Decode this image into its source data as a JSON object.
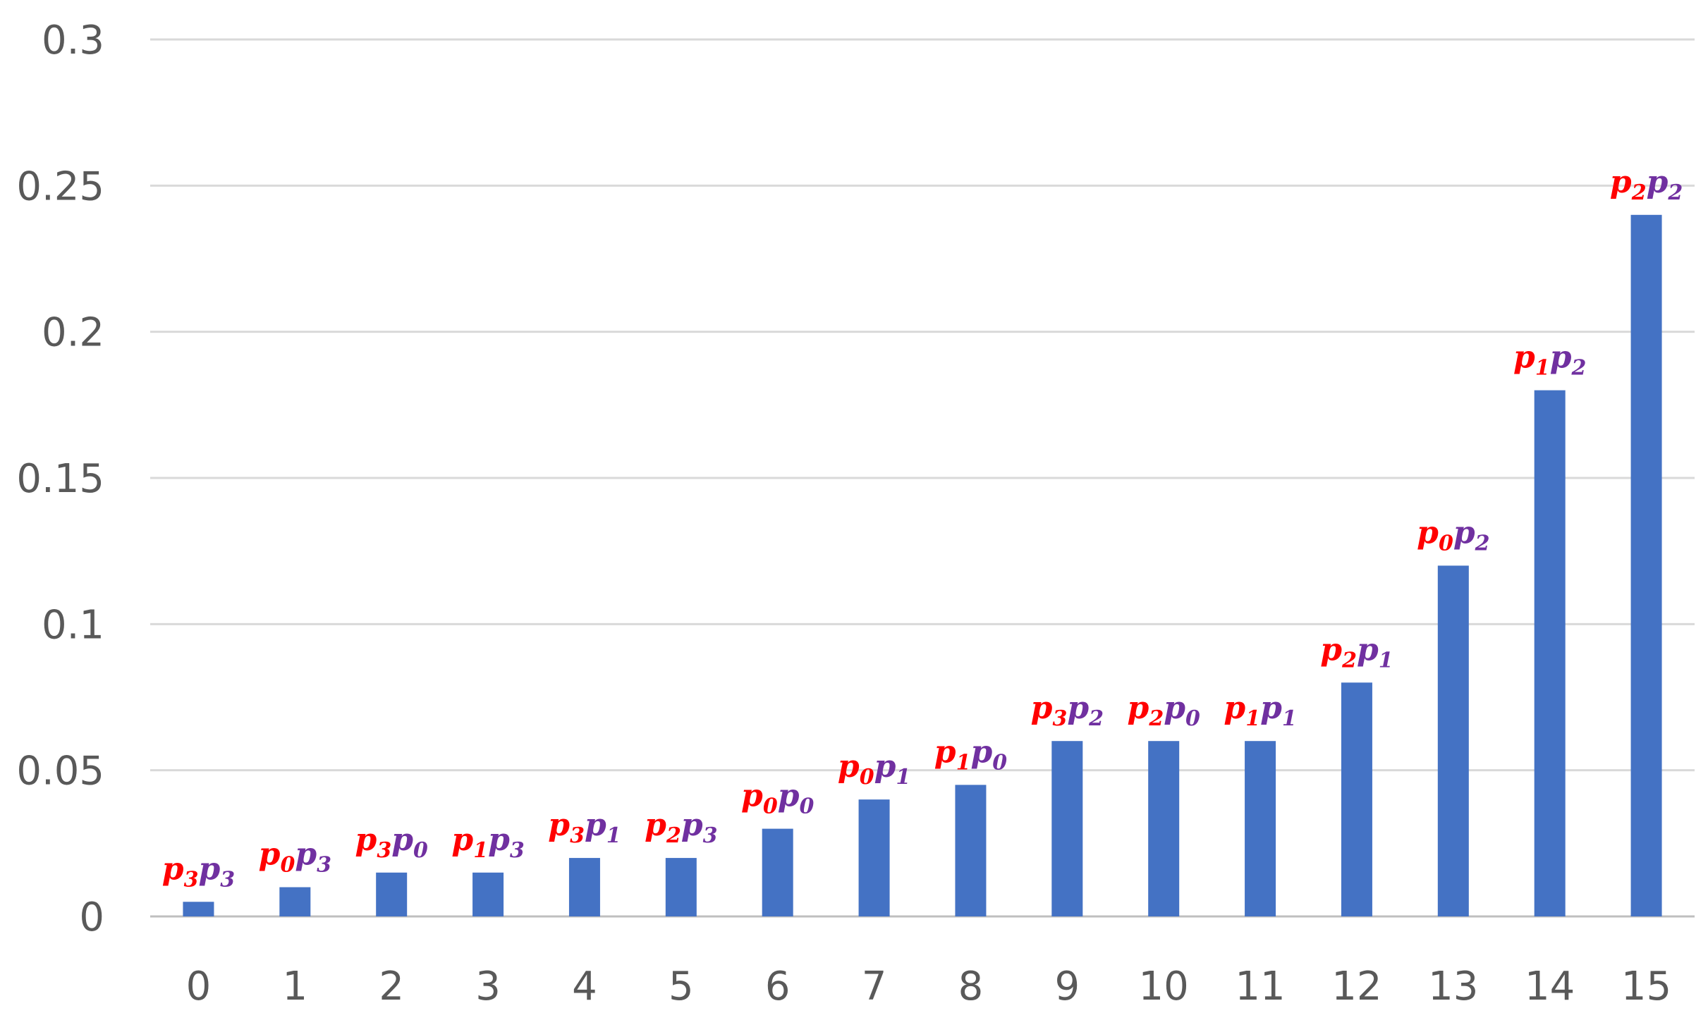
{
  "chart_data": {
    "type": "bar",
    "title": "",
    "xlabel": "",
    "ylabel": "",
    "ylim": [
      0,
      0.3
    ],
    "yticks": [
      "0",
      "0.05",
      "0.1",
      "0.15",
      "0.2",
      "0.25",
      "0.3"
    ],
    "grid": true,
    "categories": [
      "0",
      "1",
      "2",
      "3",
      "4",
      "5",
      "6",
      "7",
      "8",
      "9",
      "10",
      "11",
      "12",
      "13",
      "14",
      "15"
    ],
    "values": [
      0.005,
      0.01,
      0.015,
      0.015,
      0.02,
      0.02,
      0.03,
      0.04,
      0.045,
      0.06,
      0.06,
      0.06,
      0.08,
      0.12,
      0.18,
      0.24
    ],
    "annotations": [
      {
        "first": "3",
        "second": "3"
      },
      {
        "first": "0",
        "second": "3"
      },
      {
        "first": "3",
        "second": "0"
      },
      {
        "first": "1",
        "second": "3"
      },
      {
        "first": "3",
        "second": "1"
      },
      {
        "first": "2",
        "second": "3"
      },
      {
        "first": "0",
        "second": "0"
      },
      {
        "first": "0",
        "second": "1"
      },
      {
        "first": "1",
        "second": "0"
      },
      {
        "first": "3",
        "second": "2"
      },
      {
        "first": "2",
        "second": "0"
      },
      {
        "first": "1",
        "second": "1"
      },
      {
        "first": "2",
        "second": "1"
      },
      {
        "first": "0",
        "second": "2"
      },
      {
        "first": "1",
        "second": "2"
      },
      {
        "first": "2",
        "second": "2"
      }
    ],
    "colors": {
      "bar": "#4472C4",
      "grid": "#D9D9D9",
      "axis": "#BFBFBF",
      "tick_text": "#595959",
      "label_first": "#FF0000",
      "label_second": "#7030A0"
    }
  }
}
